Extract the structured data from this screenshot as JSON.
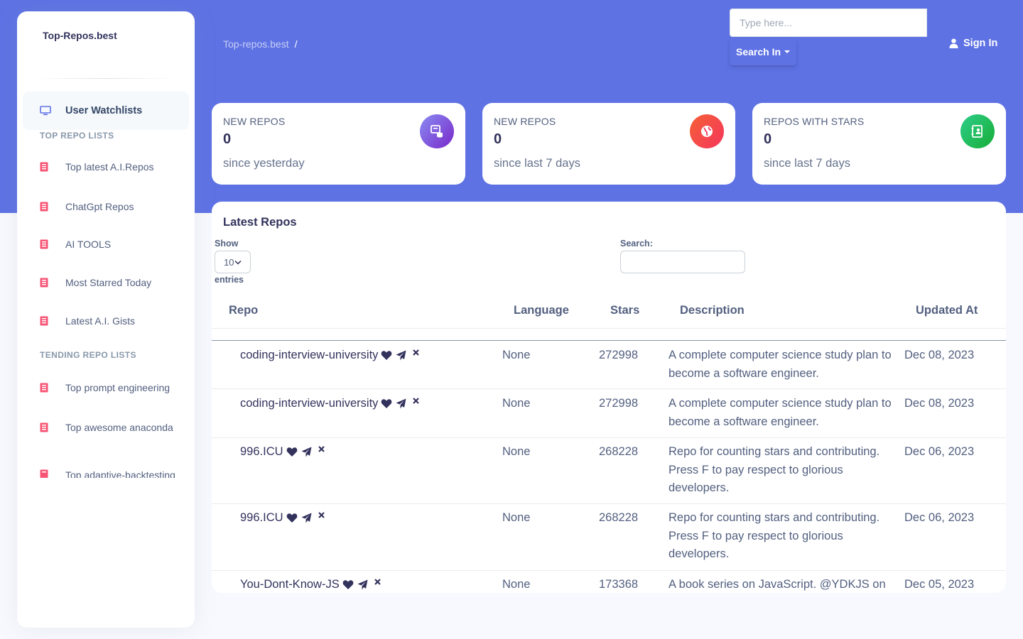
{
  "sidebar": {
    "brand": "Top-Repos.best",
    "active_item": {
      "label": "User Watchlists",
      "icon": "monitor-icon"
    },
    "sections": [
      {
        "heading": "TOP REPO LISTS",
        "items": [
          {
            "label": "Top latest A.I.Repos",
            "icon": "book-icon"
          },
          {
            "label": "ChatGpt Repos",
            "icon": "book-icon"
          },
          {
            "label": "AI TOOLS",
            "icon": "book-icon"
          },
          {
            "label": "Most Starred Today",
            "icon": "book-icon"
          },
          {
            "label": "Latest A.I. Gists",
            "icon": "book-icon"
          }
        ]
      },
      {
        "heading": "TENDING REPO LISTS",
        "items": [
          {
            "label": "Top prompt engineering",
            "icon": "book-icon"
          },
          {
            "label": "Top awesome anaconda",
            "icon": "book-icon"
          },
          {
            "label": "Top adaptive-backtesting",
            "icon": "book-icon"
          }
        ]
      }
    ]
  },
  "header": {
    "breadcrumb": {
      "root": "Top-repos.best",
      "separator": "/"
    },
    "search_placeholder": "Type here...",
    "search_in_label": "Search In",
    "sign_in_label": "Sign In"
  },
  "stats": [
    {
      "title": "NEW REPOS",
      "value": "0",
      "subtitle": "since yesterday",
      "icon": "database-icon",
      "color": "#7c5fe6"
    },
    {
      "title": "NEW REPOS",
      "value": "0",
      "subtitle": "since last 7 days",
      "icon": "world-icon",
      "color": "#f5365c"
    },
    {
      "title": "REPOS WITH STARS",
      "value": "0",
      "subtitle": "since last 7 days",
      "icon": "contact-book-icon",
      "color": "#2dce89"
    }
  ],
  "table": {
    "title": "Latest Repos",
    "length_label_show": "Show",
    "length_value": "10",
    "length_label_entries": "entries",
    "search_label": "Search:",
    "columns": [
      "Repo",
      "Language",
      "Stars",
      "Description",
      "Updated At"
    ],
    "rows": [
      {
        "repo": "coding-interview-university",
        "language": "None",
        "stars": "272998",
        "description": "A complete computer science study plan to become a software engineer.",
        "updated": "Dec 08, 2023"
      },
      {
        "repo": "coding-interview-university",
        "language": "None",
        "stars": "272998",
        "description": "A complete computer science study plan to become a software engineer.",
        "updated": "Dec 08, 2023"
      },
      {
        "repo": "996.ICU",
        "language": "None",
        "stars": "268228",
        "description": "Repo for counting stars and contributing. Press F to pay respect to glorious developers.",
        "updated": "Dec 06, 2023"
      },
      {
        "repo": "996.ICU",
        "language": "None",
        "stars": "268228",
        "description": "Repo for counting stars and contributing. Press F to pay respect to glorious developers.",
        "updated": "Dec 06, 2023"
      },
      {
        "repo": "You-Dont-Know-JS",
        "language": "None",
        "stars": "173368",
        "description": "A book series on JavaScript. @YDKJS on",
        "updated": "Dec 05, 2023"
      }
    ]
  },
  "colors": {
    "primary": "#5e72e4",
    "book_icon": "#f5365c",
    "text_dark": "#32325d"
  }
}
